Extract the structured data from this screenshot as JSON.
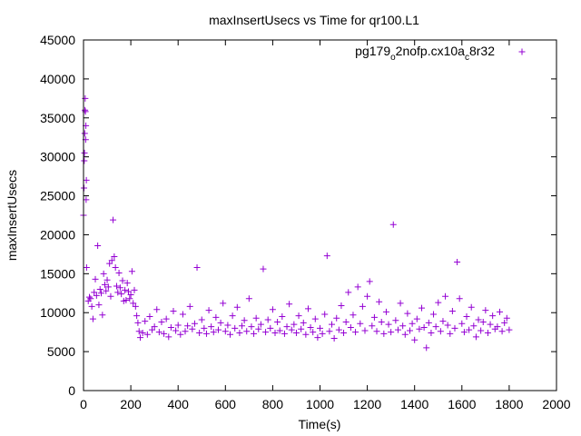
{
  "chart_data": {
    "type": "scatter",
    "title": "maxInsertUsecs vs Time for qr100.L1",
    "xlabel": "Time(s)",
    "ylabel": "maxInsertUsecs",
    "xlim": [
      0,
      2000
    ],
    "ylim": [
      0,
      45000
    ],
    "xticks": [
      "0",
      "200",
      "400",
      "600",
      "800",
      "1000",
      "1200",
      "1400",
      "1600",
      "1800",
      "2000"
    ],
    "yticks": [
      "0",
      "5000",
      "10000",
      "15000",
      "20000",
      "25000",
      "30000",
      "35000",
      "40000",
      "45000"
    ],
    "grid": false,
    "legend_position": "top-right",
    "series": [
      {
        "name_parts": [
          "pg179",
          "o",
          "2nofp.cx10a",
          "c",
          "8r32"
        ],
        "color": "#9400d3",
        "marker": "plus",
        "points": [
          [
            0,
            22500
          ],
          [
            2,
            26000
          ],
          [
            3,
            29500
          ],
          [
            4,
            30500
          ],
          [
            5,
            33000
          ],
          [
            6,
            36000
          ],
          [
            7,
            37500
          ],
          [
            8,
            35800
          ],
          [
            9,
            32200
          ],
          [
            10,
            34000
          ],
          [
            11,
            24500
          ],
          [
            12,
            27000
          ],
          [
            13,
            15800
          ],
          [
            20,
            11500
          ],
          [
            25,
            12000
          ],
          [
            30,
            11800
          ],
          [
            35,
            10800
          ],
          [
            40,
            9200
          ],
          [
            45,
            12600
          ],
          [
            50,
            14300
          ],
          [
            55,
            12200
          ],
          [
            60,
            18600
          ],
          [
            65,
            11000
          ],
          [
            70,
            13000
          ],
          [
            75,
            12500
          ],
          [
            80,
            9700
          ],
          [
            85,
            15000
          ],
          [
            90,
            13600
          ],
          [
            95,
            12800
          ],
          [
            100,
            14200
          ],
          [
            105,
            13300
          ],
          [
            110,
            16300
          ],
          [
            115,
            12100
          ],
          [
            120,
            16700
          ],
          [
            125,
            21900
          ],
          [
            130,
            17200
          ],
          [
            135,
            15800
          ],
          [
            140,
            13400
          ],
          [
            145,
            12600
          ],
          [
            150,
            15100
          ],
          [
            155,
            13200
          ],
          [
            160,
            12400
          ],
          [
            165,
            14100
          ],
          [
            170,
            11500
          ],
          [
            175,
            12900
          ],
          [
            180,
            11600
          ],
          [
            185,
            13800
          ],
          [
            190,
            12700
          ],
          [
            195,
            11800
          ],
          [
            200,
            12300
          ],
          [
            205,
            15300
          ],
          [
            210,
            11200
          ],
          [
            215,
            12900
          ],
          [
            220,
            10800
          ],
          [
            225,
            9600
          ],
          [
            230,
            8700
          ],
          [
            235,
            7600
          ],
          [
            240,
            6800
          ],
          [
            250,
            7400
          ],
          [
            260,
            8900
          ],
          [
            270,
            7200
          ],
          [
            280,
            9500
          ],
          [
            290,
            7800
          ],
          [
            300,
            8200
          ],
          [
            310,
            10400
          ],
          [
            320,
            7500
          ],
          [
            330,
            8800
          ],
          [
            340,
            7300
          ],
          [
            350,
            9200
          ],
          [
            360,
            6900
          ],
          [
            370,
            8100
          ],
          [
            380,
            10200
          ],
          [
            390,
            7700
          ],
          [
            400,
            8400
          ],
          [
            410,
            7200
          ],
          [
            420,
            9800
          ],
          [
            430,
            7600
          ],
          [
            440,
            8300
          ],
          [
            450,
            10800
          ],
          [
            460,
            7900
          ],
          [
            470,
            8600
          ],
          [
            480,
            15800
          ],
          [
            490,
            7400
          ],
          [
            500,
            9100
          ],
          [
            510,
            8000
          ],
          [
            520,
            7300
          ],
          [
            530,
            10300
          ],
          [
            540,
            8200
          ],
          [
            550,
            7500
          ],
          [
            560,
            9400
          ],
          [
            570,
            7800
          ],
          [
            580,
            8700
          ],
          [
            590,
            11200
          ],
          [
            600,
            7600
          ],
          [
            610,
            8400
          ],
          [
            620,
            7200
          ],
          [
            630,
            9600
          ],
          [
            640,
            8000
          ],
          [
            650,
            10700
          ],
          [
            660,
            7400
          ],
          [
            670,
            8300
          ],
          [
            680,
            9000
          ],
          [
            690,
            7600
          ],
          [
            700,
            11800
          ],
          [
            710,
            8200
          ],
          [
            720,
            7300
          ],
          [
            730,
            9300
          ],
          [
            740,
            7900
          ],
          [
            750,
            8500
          ],
          [
            760,
            15600
          ],
          [
            770,
            7500
          ],
          [
            780,
            9100
          ],
          [
            790,
            8000
          ],
          [
            800,
            10400
          ],
          [
            810,
            7400
          ],
          [
            820,
            8800
          ],
          [
            830,
            7700
          ],
          [
            840,
            9500
          ],
          [
            850,
            7300
          ],
          [
            860,
            8200
          ],
          [
            870,
            11100
          ],
          [
            880,
            7800
          ],
          [
            890,
            8500
          ],
          [
            900,
            7400
          ],
          [
            910,
            9600
          ],
          [
            920,
            7900
          ],
          [
            930,
            8700
          ],
          [
            940,
            7200
          ],
          [
            950,
            10500
          ],
          [
            960,
            8100
          ],
          [
            970,
            7500
          ],
          [
            980,
            9200
          ],
          [
            990,
            6800
          ],
          [
            1000,
            8000
          ],
          [
            1010,
            7300
          ],
          [
            1020,
            9800
          ],
          [
            1030,
            17300
          ],
          [
            1040,
            7600
          ],
          [
            1050,
            8500
          ],
          [
            1060,
            6700
          ],
          [
            1070,
            9300
          ],
          [
            1080,
            7800
          ],
          [
            1090,
            10900
          ],
          [
            1100,
            7400
          ],
          [
            1110,
            8800
          ],
          [
            1120,
            12600
          ],
          [
            1130,
            8100
          ],
          [
            1140,
            9700
          ],
          [
            1150,
            7500
          ],
          [
            1160,
            13300
          ],
          [
            1170,
            8600
          ],
          [
            1180,
            10800
          ],
          [
            1190,
            7700
          ],
          [
            1200,
            12100
          ],
          [
            1210,
            14000
          ],
          [
            1220,
            8300
          ],
          [
            1230,
            9400
          ],
          [
            1240,
            7600
          ],
          [
            1250,
            11400
          ],
          [
            1260,
            8800
          ],
          [
            1270,
            7300
          ],
          [
            1280,
            10100
          ],
          [
            1290,
            8500
          ],
          [
            1300,
            7500
          ],
          [
            1310,
            21300
          ],
          [
            1320,
            9000
          ],
          [
            1330,
            7800
          ],
          [
            1340,
            11200
          ],
          [
            1350,
            8300
          ],
          [
            1360,
            7200
          ],
          [
            1370,
            9900
          ],
          [
            1380,
            7700
          ],
          [
            1390,
            8600
          ],
          [
            1400,
            6500
          ],
          [
            1410,
            9200
          ],
          [
            1420,
            7900
          ],
          [
            1430,
            10600
          ],
          [
            1440,
            8100
          ],
          [
            1450,
            5500
          ],
          [
            1460,
            8700
          ],
          [
            1470,
            7400
          ],
          [
            1480,
            9800
          ],
          [
            1490,
            8200
          ],
          [
            1500,
            11300
          ],
          [
            1510,
            7600
          ],
          [
            1520,
            8900
          ],
          [
            1530,
            12100
          ],
          [
            1540,
            8400
          ],
          [
            1550,
            7300
          ],
          [
            1560,
            10200
          ],
          [
            1570,
            8000
          ],
          [
            1580,
            16500
          ],
          [
            1590,
            11800
          ],
          [
            1600,
            8600
          ],
          [
            1610,
            7500
          ],
          [
            1620,
            9500
          ],
          [
            1630,
            7800
          ],
          [
            1640,
            10700
          ],
          [
            1650,
            8300
          ],
          [
            1660,
            6900
          ],
          [
            1670,
            9100
          ],
          [
            1680,
            7700
          ],
          [
            1690,
            8800
          ],
          [
            1700,
            10300
          ],
          [
            1710,
            7400
          ],
          [
            1720,
            8500
          ],
          [
            1730,
            9600
          ],
          [
            1740,
            7900
          ],
          [
            1750,
            8200
          ],
          [
            1760,
            10100
          ],
          [
            1770,
            7600
          ],
          [
            1780,
            8700
          ],
          [
            1790,
            9300
          ],
          [
            1800,
            7800
          ]
        ]
      }
    ]
  }
}
